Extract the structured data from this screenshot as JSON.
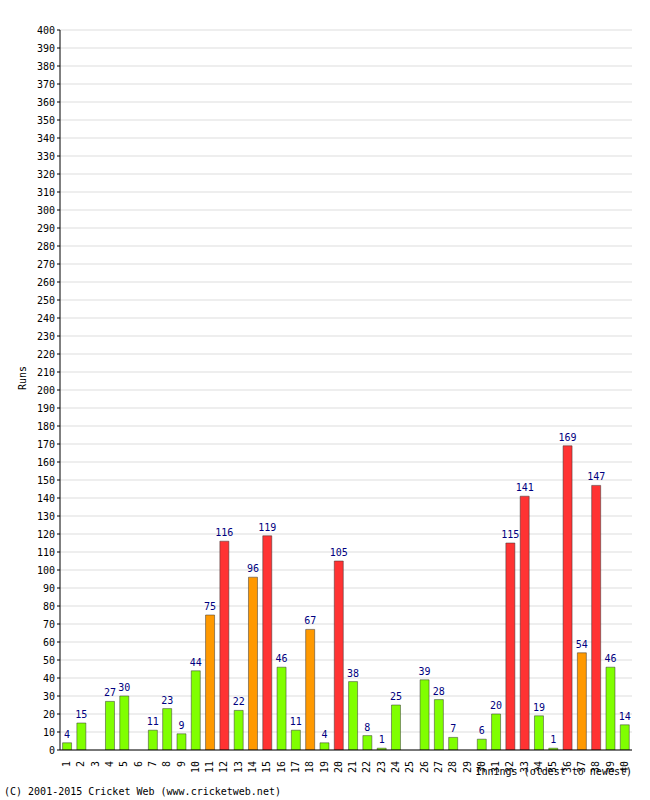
{
  "chart_data": {
    "type": "bar",
    "x_label": "Innings (oldest to newest)",
    "y_label": "Runs",
    "annotations": [
      "(C) 2001-2015 Cricket Web (www.cricketweb.net)"
    ],
    "categories": [
      "1",
      "2",
      "3",
      "4",
      "5",
      "6",
      "7",
      "8",
      "9",
      "10",
      "11",
      "12",
      "13",
      "14",
      "15",
      "16",
      "17",
      "18",
      "19",
      "20",
      "21",
      "22",
      "23",
      "24",
      "25",
      "26",
      "27",
      "28",
      "29",
      "30",
      "31",
      "32",
      "33",
      "34",
      "35",
      "36",
      "37",
      "38",
      "39",
      "40"
    ],
    "values": [
      4,
      15,
      0,
      27,
      30,
      0,
      11,
      23,
      9,
      44,
      75,
      116,
      22,
      96,
      119,
      46,
      11,
      67,
      4,
      105,
      38,
      8,
      1,
      25,
      0,
      39,
      28,
      7,
      0,
      6,
      20,
      115,
      141,
      19,
      1,
      169,
      54,
      147,
      46,
      14
    ],
    "colors": [
      "#80ff00",
      "#80ff00",
      "#80ff00",
      "#80ff00",
      "#80ff00",
      "#80ff00",
      "#80ff00",
      "#80ff00",
      "#80ff00",
      "#80ff00",
      "#ff9900",
      "#ff3333",
      "#80ff00",
      "#ff9900",
      "#ff3333",
      "#80ff00",
      "#80ff00",
      "#ff9900",
      "#80ff00",
      "#ff3333",
      "#80ff00",
      "#80ff00",
      "#80ff00",
      "#80ff00",
      "#80ff00",
      "#80ff00",
      "#80ff00",
      "#80ff00",
      "#80ff00",
      "#80ff00",
      "#80ff00",
      "#ff3333",
      "#ff3333",
      "#80ff00",
      "#80ff00",
      "#ff3333",
      "#ff9900",
      "#ff3333",
      "#80ff00",
      "#80ff00"
    ],
    "ylim": [
      0,
      400
    ],
    "yticks": [
      0,
      10,
      20,
      30,
      40,
      50,
      60,
      70,
      80,
      90,
      100,
      110,
      120,
      130,
      140,
      150,
      160,
      170,
      180,
      190,
      200,
      210,
      220,
      230,
      240,
      250,
      260,
      270,
      280,
      290,
      300,
      310,
      320,
      330,
      340,
      350,
      360,
      370,
      380,
      390,
      400
    ],
    "grid": true,
    "data_labels": true
  }
}
